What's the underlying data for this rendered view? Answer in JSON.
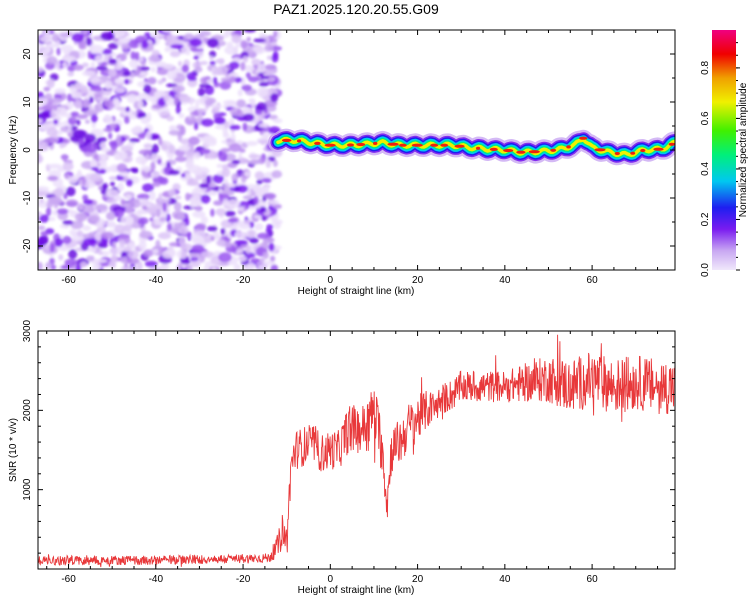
{
  "chart_data": [
    {
      "type": "heatmap",
      "title": "PAZ1.2025.120.20.55.G09",
      "xlabel": "Height of straight line (km)",
      "ylabel": "Frequency (Hz)",
      "xlim": [
        -67,
        79
      ],
      "ylim": [
        -25,
        25
      ],
      "xticks": [
        -60,
        -40,
        -20,
        0,
        20,
        40,
        60
      ],
      "yticks": [
        -20,
        -10,
        0,
        10,
        20
      ],
      "colorbar": {
        "label": "Normalized spectral amplitude",
        "range": [
          0.0,
          0.95
        ],
        "ticks": [
          "0.0",
          "0.2",
          "0.4",
          "0.6",
          "0.8"
        ],
        "colors": [
          "#f0e8fb",
          "#c9a8f2",
          "#7a1cf0",
          "#1e1ef0",
          "#00c8f0",
          "#00f07a",
          "#40f000",
          "#f0f000",
          "#f0a000",
          "#f00000",
          "#f00080"
        ]
      },
      "noise_region_x": [
        -67,
        -12
      ],
      "signal_track": {
        "x": [
          -12,
          -8,
          -4,
          0,
          4,
          8,
          12,
          16,
          20,
          24,
          28,
          32,
          36,
          40,
          44,
          48,
          52,
          56,
          58,
          60,
          64,
          68,
          72,
          76,
          79
        ],
        "frequency": [
          2.0,
          2.0,
          1.5,
          1.0,
          1.0,
          1.2,
          1.5,
          1.0,
          1.0,
          1.0,
          1.0,
          0.5,
          0.2,
          0.0,
          -0.5,
          -0.3,
          0.0,
          1.0,
          2.5,
          0.5,
          -0.5,
          -1.0,
          0.0,
          0.2,
          1.5
        ]
      }
    },
    {
      "type": "line",
      "xlabel": "Height of straight line (km)",
      "ylabel": "SNR (10 * v/v)",
      "xlim": [
        -67,
        79
      ],
      "ylim": [
        0,
        3000
      ],
      "xticks": [
        -60,
        -40,
        -20,
        0,
        20,
        40,
        60
      ],
      "yticks": [
        1000,
        2000,
        3000
      ],
      "series": [
        {
          "color": "#e8383a",
          "x": [
            -67,
            -60,
            -50,
            -40,
            -30,
            -20,
            -14,
            -12,
            -11,
            -10,
            -9,
            -8,
            -6,
            -4,
            -2,
            0,
            2,
            4,
            6,
            8,
            10,
            12,
            13,
            14,
            16,
            18,
            20,
            22,
            24,
            26,
            28,
            30,
            35,
            40,
            45,
            50,
            55,
            60,
            65,
            70,
            75,
            79
          ],
          "y": [
            110,
            110,
            110,
            110,
            120,
            130,
            140,
            300,
            500,
            350,
            1300,
            1500,
            1550,
            1600,
            1450,
            1500,
            1500,
            1750,
            1750,
            1800,
            2000,
            1500,
            800,
            1500,
            1600,
            1800,
            1900,
            2000,
            2050,
            2150,
            2200,
            2300,
            2300,
            2300,
            2350,
            2400,
            2300,
            2400,
            2300,
            2350,
            2300,
            2300
          ],
          "noise_amplitude": [
            60,
            60,
            60,
            60,
            60,
            60,
            60,
            150,
            200,
            200,
            250,
            250,
            250,
            250,
            250,
            250,
            250,
            300,
            300,
            300,
            350,
            350,
            250,
            300,
            300,
            300,
            300,
            250,
            200,
            200,
            200,
            200,
            200,
            200,
            250,
            300,
            350,
            350,
            350,
            350,
            350,
            350
          ]
        }
      ]
    }
  ]
}
